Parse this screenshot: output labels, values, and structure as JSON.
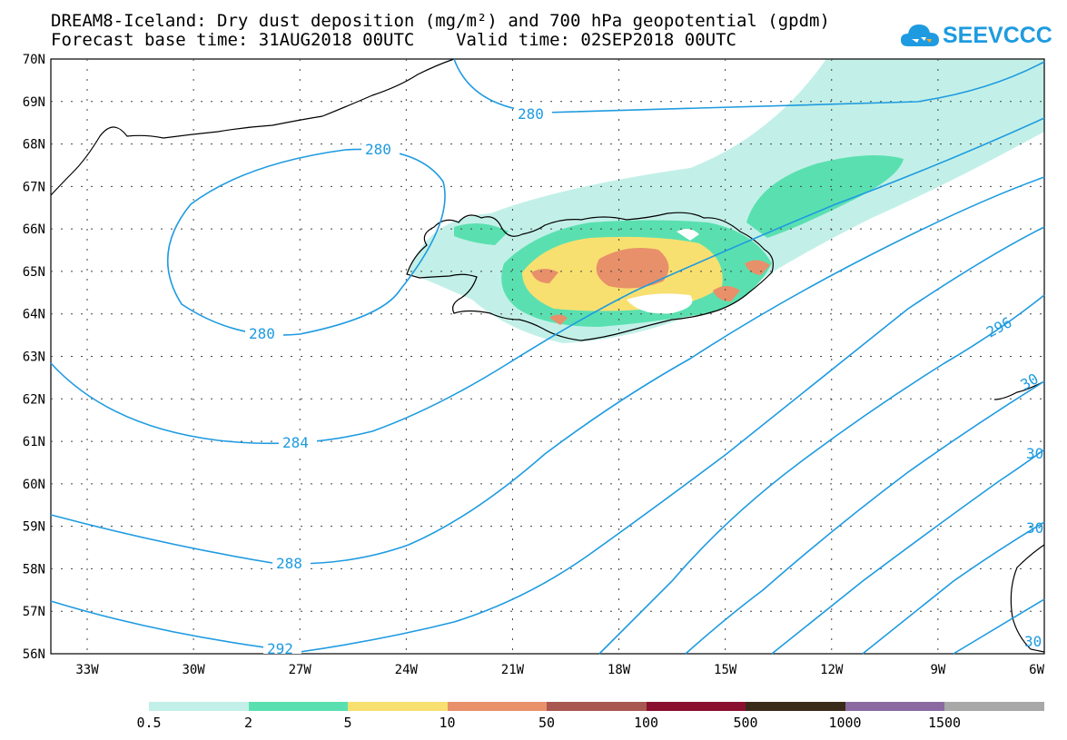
{
  "title": {
    "line1": "DREAM8-Iceland: Dry dust deposition (mg/m²) and 700 hPa geopotential (gpdm)",
    "line2": "Forecast base time: 31AUG2018 00UTC    Valid time: 02SEP2018 00UTC"
  },
  "logo": {
    "text": "SEEVCCC",
    "icon": "cloud-icon",
    "color": "#1e9be0"
  },
  "map": {
    "lat_labels": [
      "70N",
      "69N",
      "68N",
      "67N",
      "66N",
      "65N",
      "64N",
      "63N",
      "62N",
      "61N",
      "60N",
      "59N",
      "58N",
      "57N",
      "56N"
    ],
    "lon_labels": [
      "33W",
      "30W",
      "27W",
      "24W",
      "21W",
      "18W",
      "15W",
      "12W",
      "9W",
      "6W"
    ],
    "contour_color": "#1e9be0",
    "contour_labels": [
      "280",
      "280",
      "280",
      "284",
      "288",
      "292",
      "296",
      "30",
      "30",
      "30",
      "30"
    ]
  },
  "legend": {
    "labels": [
      "0.5",
      "2",
      "5",
      "10",
      "50",
      "100",
      "500",
      "1000",
      "1500"
    ],
    "colors": [
      "#c2f0e8",
      "#5ae0b0",
      "#f8e070",
      "#e8906a",
      "#a85850",
      "#8a1030",
      "#3a2a1a",
      "#8a6aa0",
      "#a8a8a8"
    ]
  }
}
